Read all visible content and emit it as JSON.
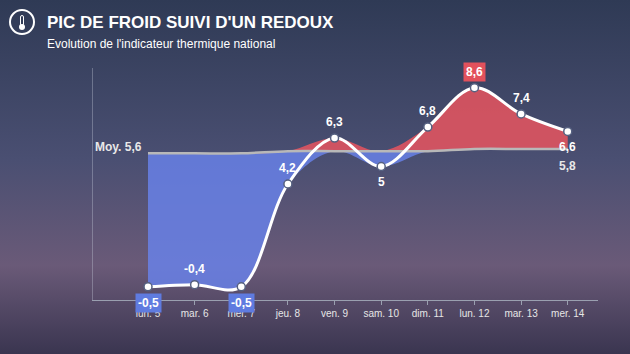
{
  "chart_data": {
    "type": "line",
    "title": "PIC DE FROID SUIVI D'UN REDOUX",
    "subtitle": "Evolution de l'indicateur thermique national",
    "categories": [
      "lun. 5",
      "mar. 6",
      "mer. 7",
      "jeu. 8",
      "ven. 9",
      "sam. 10",
      "dim. 11",
      "lun. 12",
      "mar. 13",
      "mer. 14"
    ],
    "series": [
      {
        "color": "#ffffff",
        "marker": "circle",
        "values": [
          -0.5,
          -0.4,
          -0.5,
          4.2,
          6.3,
          5,
          6.8,
          8.6,
          7.4,
          6.6
        ],
        "value_labels": [
          "-0,5",
          "-0,4",
          "-0,5",
          "4,2",
          "6,3",
          "5",
          "6,8",
          "8,6",
          "7,4",
          "6,6"
        ]
      },
      {
        "color": "#b8b8b8",
        "line_style": "solid",
        "values": [
          5.6,
          5.6,
          5.6,
          5.7,
          5.7,
          5.7,
          5.7,
          5.8,
          5.8,
          5.8
        ],
        "value_labels": [
          "Moy. 5,6",
          null,
          null,
          null,
          null,
          null,
          null,
          null,
          null,
          "5,8"
        ]
      }
    ],
    "ylim": [
      -1.1,
      9.5
    ],
    "yticks": [],
    "grid": false,
    "data_labels": true,
    "tick_labels": "x"
  }
}
